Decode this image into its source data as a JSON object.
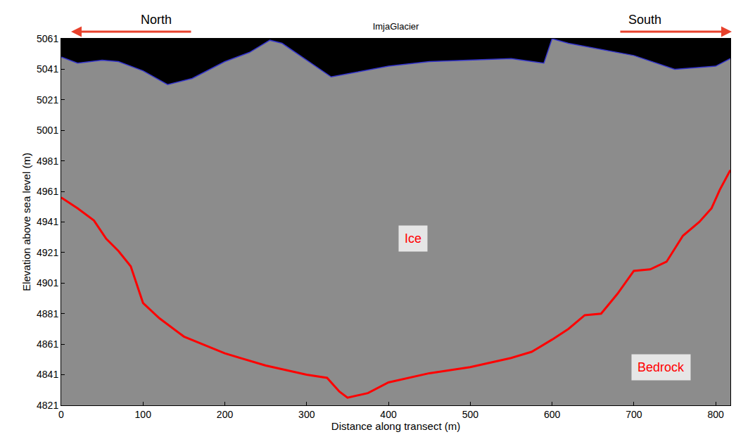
{
  "chart_data": {
    "type": "line",
    "title": "ImjaGlacier",
    "x_label": "Distance along transect (m)",
    "y_label": "Elevation above sea level (m)",
    "north_label": "North",
    "south_label": "South",
    "xlim": [
      0,
      818
    ],
    "xticks": [
      0,
      100,
      200,
      300,
      400,
      500,
      600,
      700,
      800
    ],
    "ylim": [
      4821,
      5061
    ],
    "yticks": [
      4821,
      4841,
      4861,
      4881,
      4901,
      4921,
      4941,
      4961,
      4981,
      5001,
      5021,
      5041,
      5061
    ],
    "grid": false,
    "series": [
      {
        "type": "area",
        "color": "#3333cc",
        "x": [
          0,
          20,
          50,
          70,
          100,
          130,
          160,
          200,
          230,
          255,
          270,
          300,
          330,
          360,
          400,
          450,
          500,
          550,
          590,
          600,
          620,
          650,
          700,
          750,
          780,
          800,
          818
        ],
        "values": [
          5049,
          5045,
          5047,
          5046,
          5040,
          5031,
          5035,
          5046,
          5052,
          5060,
          5058,
          5047,
          5036,
          5039,
          5043,
          5046,
          5047,
          5048,
          5045,
          5061,
          5058,
          5055,
          5050,
          5041,
          5042,
          5043,
          5048
        ]
      },
      {
        "type": "line",
        "color": "#ff0000",
        "x": [
          0,
          20,
          40,
          55,
          70,
          85,
          100,
          120,
          150,
          200,
          250,
          300,
          325,
          340,
          350,
          375,
          400,
          450,
          500,
          550,
          575,
          600,
          620,
          640,
          660,
          680,
          700,
          720,
          740,
          760,
          780,
          795,
          805,
          818
        ],
        "values": [
          4957,
          4950,
          4942,
          4930,
          4922,
          4912,
          4888,
          4878,
          4866,
          4855,
          4847,
          4841,
          4839,
          4830,
          4826,
          4829,
          4836,
          4842,
          4846,
          4852,
          4856,
          4864,
          4871,
          4880,
          4881,
          4894,
          4909,
          4910,
          4915,
          4932,
          4941,
          4950,
          4962,
          4975
        ]
      }
    ],
    "annotations": [
      {
        "text": "Ice",
        "x": 430,
        "y": 4930
      },
      {
        "text": "Bedrock",
        "x": 733,
        "y": 4846
      }
    ]
  }
}
